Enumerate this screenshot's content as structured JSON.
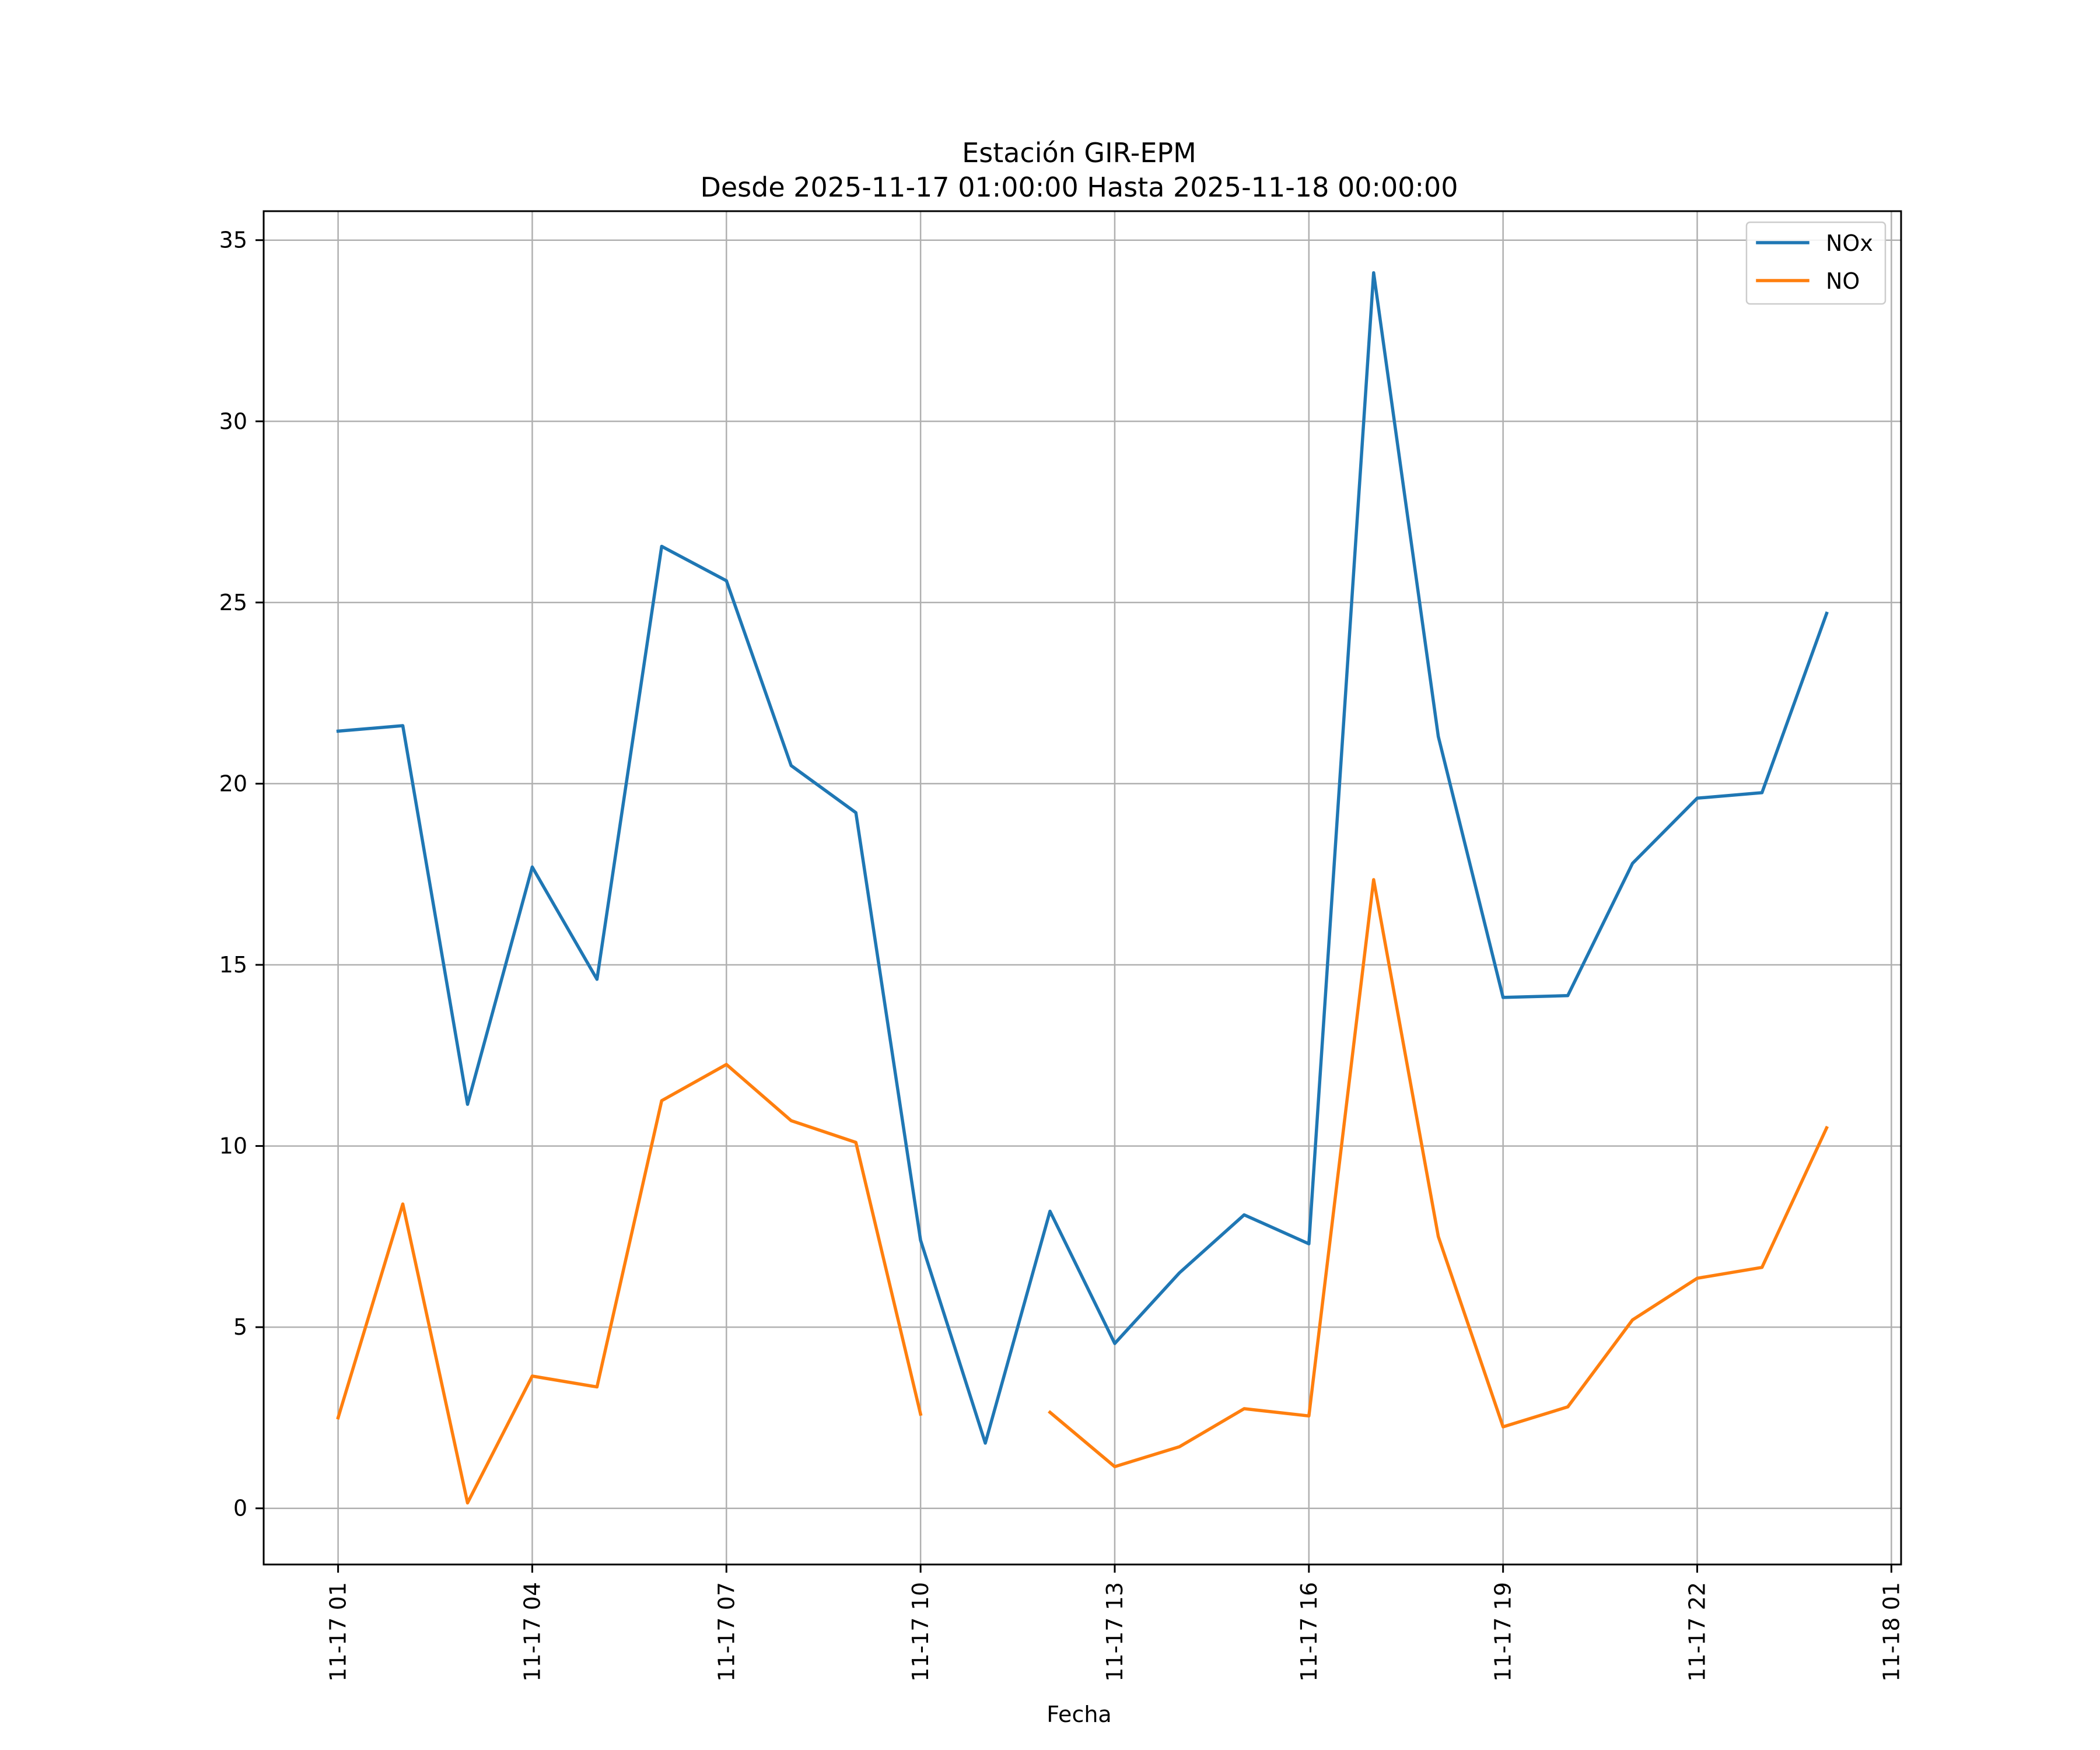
{
  "chart_data": {
    "type": "line",
    "title": "Estación GIR-EPM",
    "subtitle": "Desde 2025-11-17 01:00:00 Hasta 2025-11-18 00:00:00",
    "xlabel": "Fecha",
    "ylabel": "",
    "x_hours": [
      1,
      2,
      3,
      4,
      5,
      6,
      7,
      8,
      9,
      10,
      11,
      12,
      13,
      14,
      15,
      16,
      17,
      18,
      19,
      20,
      21,
      22,
      23,
      24
    ],
    "xlim": [
      -0.15,
      25.15
    ],
    "ylim": [
      -1.55,
      35.8
    ],
    "x_ticks": [
      {
        "hour": 1,
        "label": "11-17 01"
      },
      {
        "hour": 4,
        "label": "11-17 04"
      },
      {
        "hour": 7,
        "label": "11-17 07"
      },
      {
        "hour": 10,
        "label": "11-17 10"
      },
      {
        "hour": 13,
        "label": "11-17 13"
      },
      {
        "hour": 16,
        "label": "11-17 16"
      },
      {
        "hour": 19,
        "label": "11-17 19"
      },
      {
        "hour": 22,
        "label": "11-17 22"
      },
      {
        "hour": 25,
        "label": "11-18 01"
      }
    ],
    "y_ticks": [
      {
        "value": 0,
        "label": "0"
      },
      {
        "value": 5,
        "label": "5"
      },
      {
        "value": 10,
        "label": "10"
      },
      {
        "value": 15,
        "label": "15"
      },
      {
        "value": 20,
        "label": "20"
      },
      {
        "value": 25,
        "label": "25"
      },
      {
        "value": 30,
        "label": "30"
      },
      {
        "value": 35,
        "label": "35"
      }
    ],
    "grid": true,
    "legend_position": "top-right",
    "series": [
      {
        "name": "NOx",
        "color": "#1f77b4",
        "values": [
          21.45,
          21.6,
          11.15,
          17.7,
          14.6,
          26.55,
          25.6,
          20.5,
          19.2,
          7.4,
          1.8,
          8.2,
          4.55,
          6.5,
          8.1,
          7.3,
          34.1,
          21.3,
          14.1,
          14.15,
          17.8,
          19.6,
          19.75,
          24.7
        ]
      },
      {
        "name": "NO",
        "color": "#ff7f0e",
        "values": [
          2.5,
          8.4,
          0.15,
          3.65,
          3.35,
          11.25,
          12.25,
          10.7,
          10.1,
          2.6,
          null,
          2.65,
          1.15,
          1.7,
          2.75,
          2.55,
          17.35,
          7.5,
          2.25,
          2.8,
          5.2,
          6.35,
          6.65,
          10.5
        ]
      }
    ]
  }
}
